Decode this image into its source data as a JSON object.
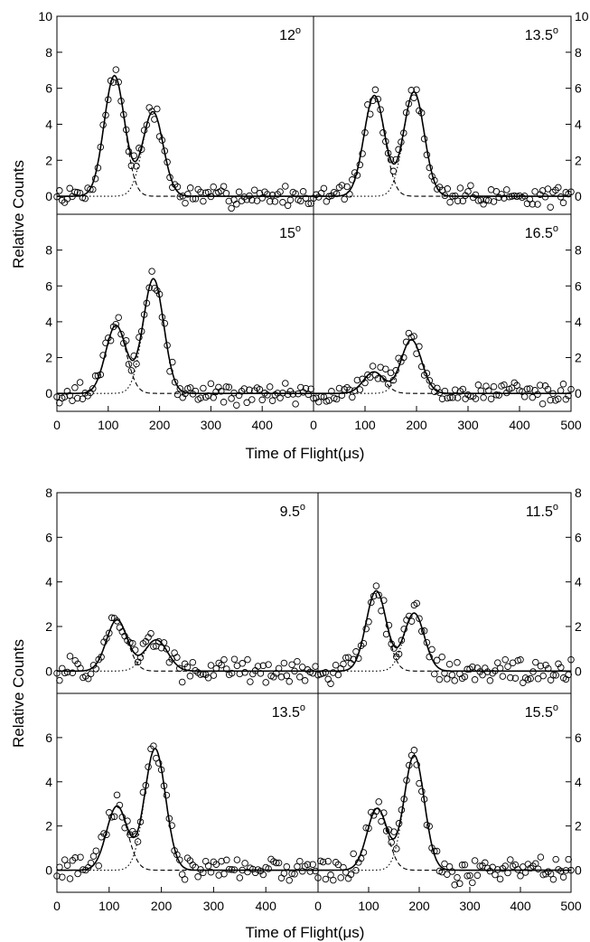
{
  "chart_data": [
    {
      "type": "scatter",
      "xlabel": "Time of Flight(μs)",
      "ylabel": "Relative Counts",
      "xlim": [
        0,
        500
      ],
      "xticks": [
        0,
        100,
        200,
        300,
        400,
        500
      ],
      "xtick_labels": [
        "0",
        "100",
        "200",
        "300",
        "400",
        "0"
      ],
      "xtick_labels_right": [
        "0",
        "100",
        "200",
        "300",
        "400",
        "500"
      ],
      "ylim_top_row": [
        -1,
        10
      ],
      "ylim_bottom_row": [
        -1,
        10
      ],
      "yticks_top_row": [
        0,
        2,
        4,
        6,
        8,
        10
      ],
      "yticks_bottom_row": [
        0,
        2,
        4,
        6,
        8
      ],
      "panels": [
        {
          "angle": "12",
          "peak1": {
            "center": 112,
            "height": 6.7,
            "width": 20
          },
          "peak2": {
            "center": 187,
            "height": 4.7,
            "width": 20
          }
        },
        {
          "angle": "13.5",
          "peak1": {
            "center": 118,
            "height": 5.6,
            "width": 20
          },
          "peak2": {
            "center": 195,
            "height": 5.8,
            "width": 20
          }
        },
        {
          "angle": "15",
          "peak1": {
            "center": 115,
            "height": 3.8,
            "width": 20
          },
          "peak2": {
            "center": 188,
            "height": 6.4,
            "width": 20
          }
        },
        {
          "angle": "16.5",
          "peak1": {
            "center": 117,
            "height": 1.2,
            "width": 20
          },
          "peak2": {
            "center": 190,
            "height": 3.0,
            "width": 20
          }
        }
      ],
      "series": [
        {
          "name": "data",
          "marker": "open circle"
        },
        {
          "name": "fit",
          "line": "solid"
        },
        {
          "name": "fast component",
          "line": "dashed"
        },
        {
          "name": "slow component",
          "line": "dotted"
        }
      ]
    },
    {
      "type": "scatter",
      "xlabel": "Time of Flight(μs)",
      "ylabel": "Relative Counts",
      "xlim": [
        0,
        500
      ],
      "xticks": [
        0,
        100,
        200,
        300,
        400,
        500
      ],
      "xtick_labels": [
        "0",
        "100",
        "200",
        "300",
        "400",
        "0"
      ],
      "xtick_labels_right": [
        "0",
        "100",
        "200",
        "300",
        "400",
        "500"
      ],
      "ylim_top_row": [
        -1,
        8
      ],
      "ylim_bottom_row": [
        -1,
        8
      ],
      "yticks_top_row": [
        0,
        2,
        4,
        6,
        8
      ],
      "yticks_bottom_row": [
        0,
        2,
        4,
        6
      ],
      "panels": [
        {
          "angle": "9.5",
          "peak1": {
            "center": 115,
            "height": 2.3,
            "width": 20
          },
          "peak2": {
            "center": 190,
            "height": 1.4,
            "width": 22
          }
        },
        {
          "angle": "11.5",
          "peak1": {
            "center": 115,
            "height": 3.6,
            "width": 20
          },
          "peak2": {
            "center": 190,
            "height": 2.6,
            "width": 20
          }
        },
        {
          "angle": "13.5",
          "peak1": {
            "center": 115,
            "height": 2.9,
            "width": 20
          },
          "peak2": {
            "center": 188,
            "height": 5.5,
            "width": 20
          }
        },
        {
          "angle": "15.5",
          "peak1": {
            "center": 117,
            "height": 2.8,
            "width": 20
          },
          "peak2": {
            "center": 190,
            "height": 5.2,
            "width": 20
          }
        }
      ],
      "series": [
        {
          "name": "data",
          "marker": "open circle"
        },
        {
          "name": "fit",
          "line": "solid"
        },
        {
          "name": "fast component",
          "line": "dashed"
        },
        {
          "name": "slow component",
          "line": "dotted"
        }
      ]
    }
  ]
}
